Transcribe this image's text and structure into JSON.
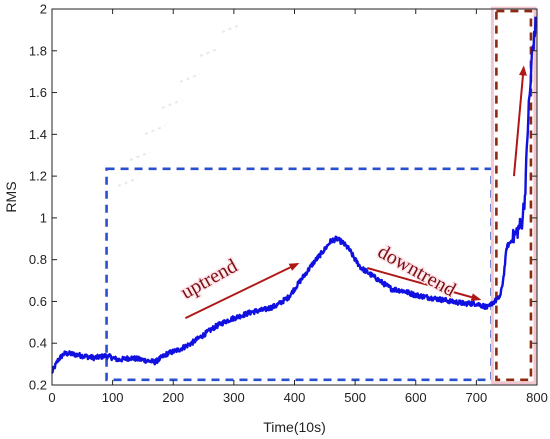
{
  "chart_data": {
    "type": "line",
    "title": "",
    "xlabel": "Time(10s)",
    "ylabel": "RMS",
    "xlim": [
      0,
      800
    ],
    "ylim": [
      0.2,
      2.0
    ],
    "xticks": [
      "0",
      "100",
      "200",
      "300",
      "400",
      "500",
      "600",
      "700",
      "800"
    ],
    "yticks": [
      "0.2",
      "0.4",
      "0.6",
      "0.8",
      "1",
      "1.2",
      "1.4",
      "1.6",
      "1.8",
      "2"
    ],
    "grid": false,
    "series": [
      {
        "color": "#1010e0",
        "x": [
          0,
          10,
          20,
          30,
          50,
          70,
          90,
          110,
          130,
          150,
          170,
          190,
          210,
          230,
          250,
          270,
          290,
          310,
          330,
          350,
          370,
          390,
          410,
          430,
          450,
          460,
          470,
          480,
          490,
          500,
          510,
          520,
          540,
          560,
          580,
          600,
          620,
          640,
          660,
          680,
          700,
          710,
          720,
          725,
          730,
          735,
          740,
          745,
          750,
          760,
          770,
          775,
          780,
          783,
          786,
          789,
          792,
          795,
          798
        ],
        "y": [
          0.26,
          0.32,
          0.35,
          0.35,
          0.34,
          0.33,
          0.34,
          0.32,
          0.33,
          0.32,
          0.31,
          0.35,
          0.37,
          0.4,
          0.44,
          0.48,
          0.51,
          0.53,
          0.55,
          0.56,
          0.58,
          0.62,
          0.7,
          0.78,
          0.85,
          0.89,
          0.9,
          0.88,
          0.85,
          0.8,
          0.76,
          0.74,
          0.7,
          0.66,
          0.65,
          0.63,
          0.62,
          0.61,
          0.6,
          0.59,
          0.59,
          0.58,
          0.57,
          0.59,
          0.6,
          0.61,
          0.63,
          0.72,
          0.86,
          0.9,
          0.95,
          0.98,
          1.1,
          1.3,
          1.52,
          1.62,
          1.8,
          1.85,
          1.94
        ]
      }
    ],
    "annotations": [
      {
        "text": "uptrend",
        "x": 220,
        "y": 0.61
      },
      {
        "text": "downtrend",
        "x": 535,
        "y": 0.82
      }
    ],
    "highlight_boxes": [
      {
        "style": "dashed",
        "color": "#2a4fd0",
        "x": [
          90,
          725
        ],
        "y": [
          0.225,
          1.235
        ]
      },
      {
        "style": "dashed",
        "color": "#8b2a10",
        "x": [
          733,
          790
        ],
        "y": [
          0.225,
          1.99
        ]
      }
    ],
    "trend_arrows": [
      {
        "color": "#b01818",
        "from": [
          220,
          0.52
        ],
        "to": [
          405,
          0.78
        ]
      },
      {
        "color": "#b01818",
        "from": [
          520,
          0.76
        ],
        "to": [
          705,
          0.61
        ]
      },
      {
        "color": "#b01818",
        "from": [
          762,
          1.2
        ],
        "to": [
          778,
          1.72
        ]
      }
    ]
  }
}
